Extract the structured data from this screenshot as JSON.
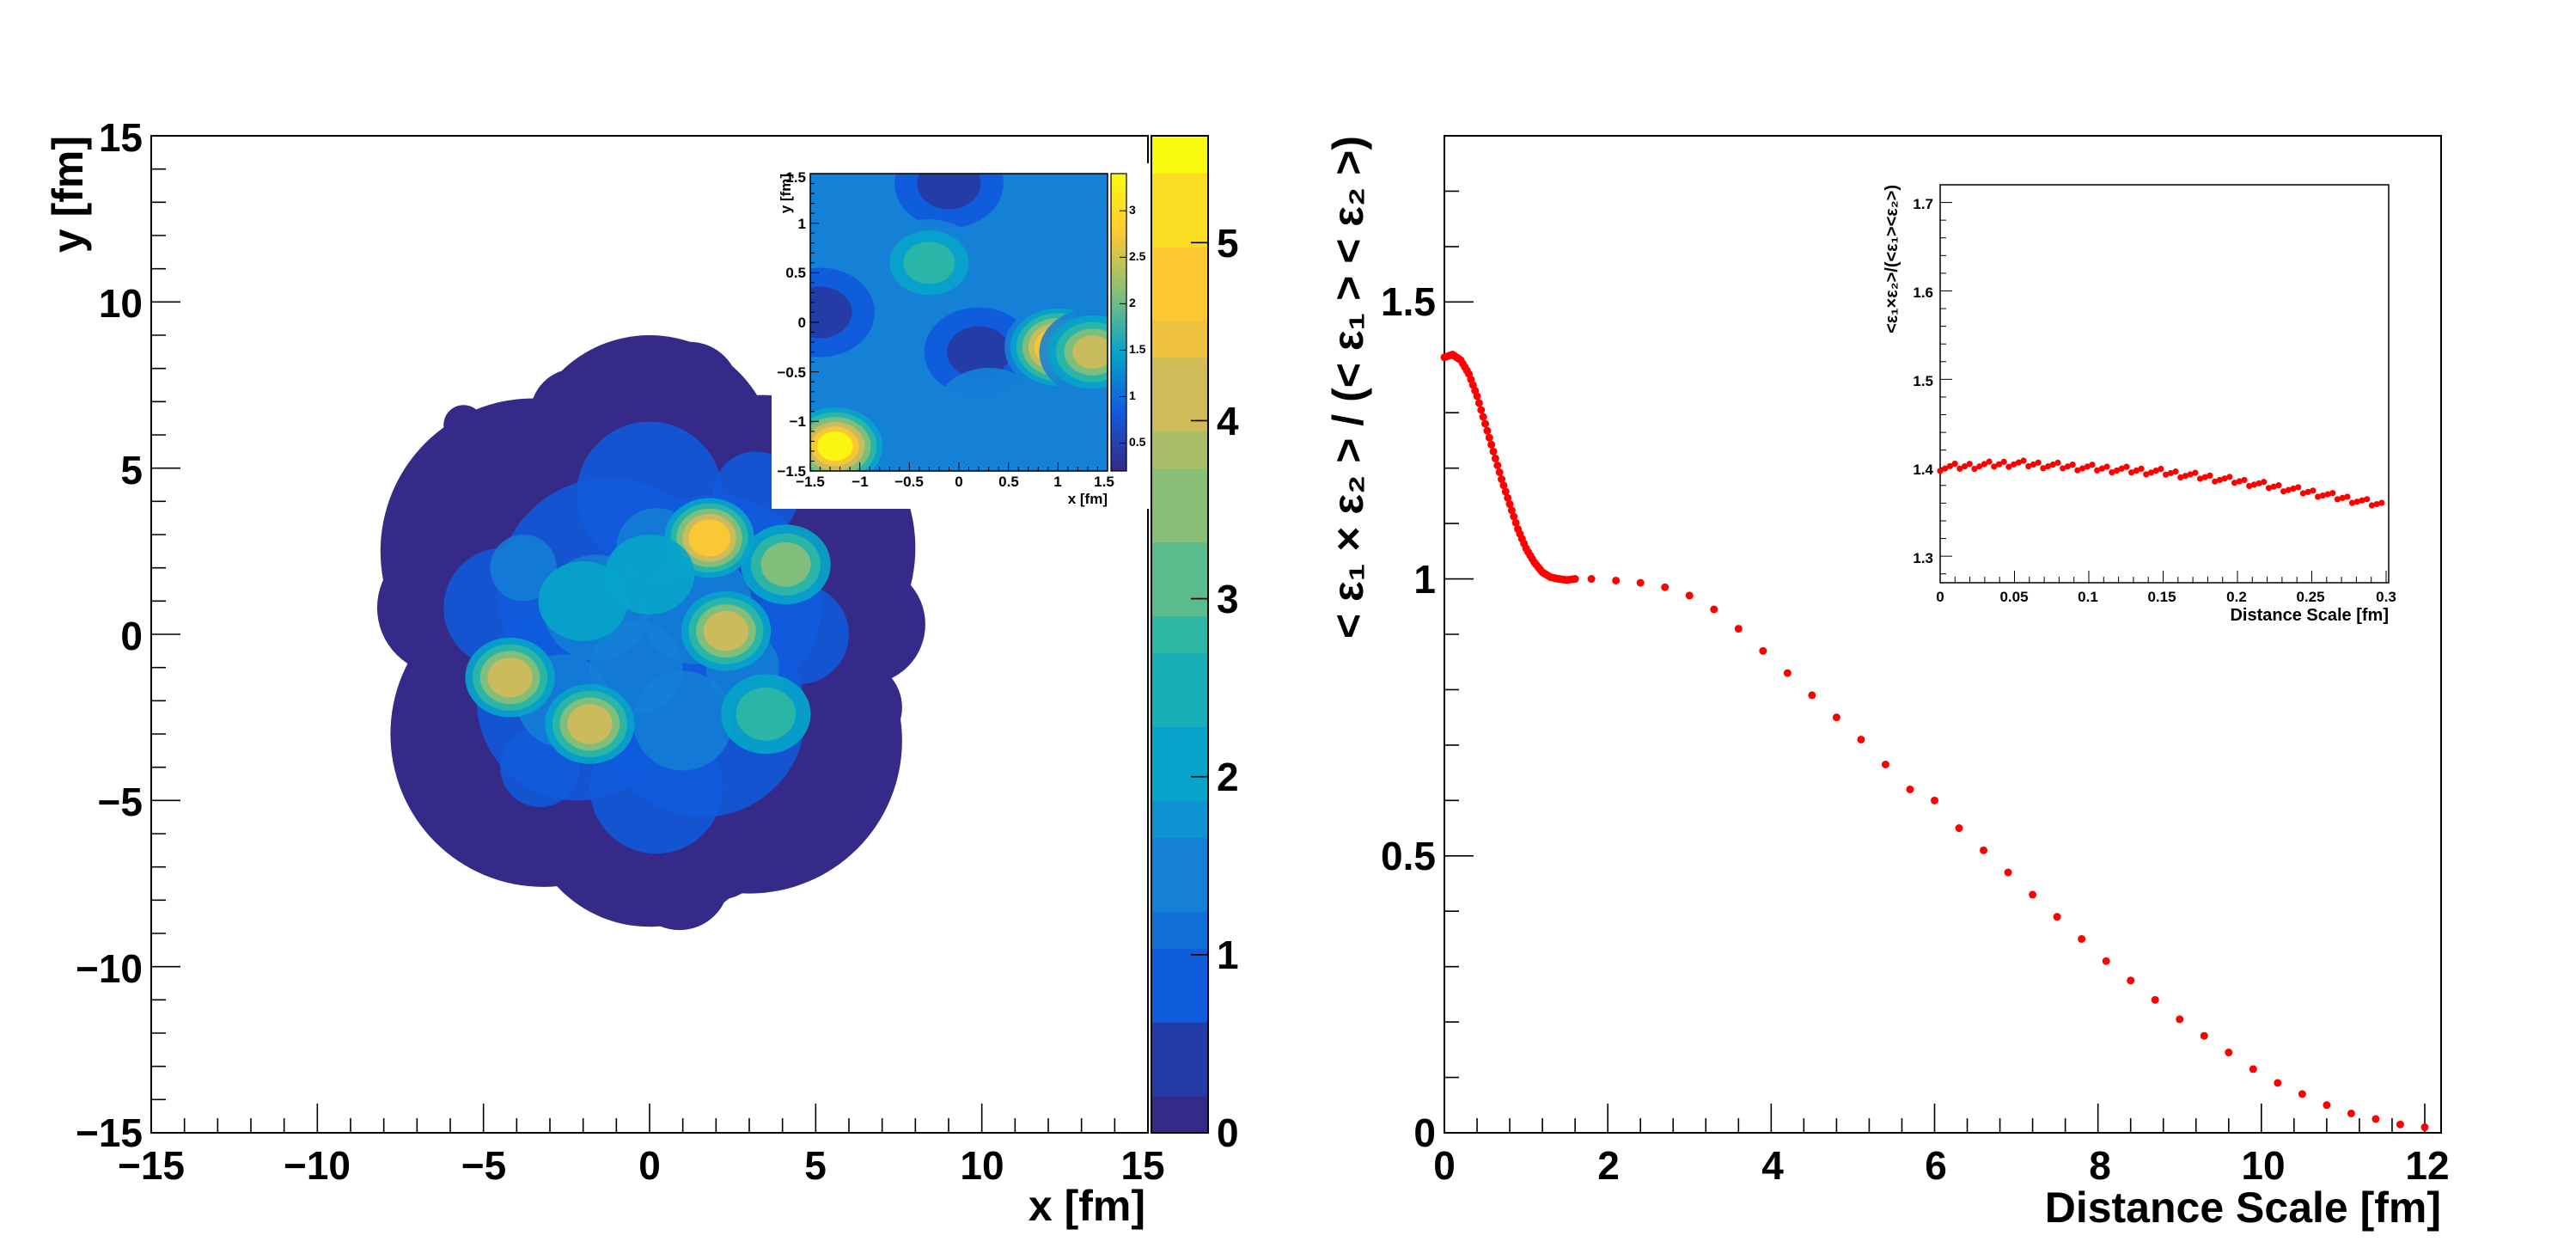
{
  "chart_data": [
    {
      "type": "heatmap",
      "xlabel": "x [fm]",
      "ylabel": "y [fm]",
      "xlim": [
        -15,
        15
      ],
      "ylim": [
        -15,
        15
      ],
      "x_ticks": [
        "−15",
        "−10",
        "−5",
        "0",
        "5",
        "10",
        "15"
      ],
      "y_ticks": [
        "−15",
        "−10",
        "−5",
        "0",
        "5",
        "10",
        "15"
      ],
      "colorbar": {
        "range": [
          0,
          5.6
        ],
        "ticks": [
          "0",
          "1",
          "2",
          "3",
          "4",
          "5"
        ],
        "palette": [
          "#352a87",
          "#0f5cdd",
          "#1481d6",
          "#06a4ca",
          "#2eb7a4",
          "#87bf77",
          "#d1bb59",
          "#fec832",
          "#f9fb0e"
        ]
      },
      "hotspots": [
        {
          "x": 1.8,
          "y": 2.9,
          "value": 4.6
        },
        {
          "x": 4.1,
          "y": 2.1,
          "value": 3.2
        },
        {
          "x": 2.3,
          "y": 0.1,
          "value": 4.4
        },
        {
          "x": -4.2,
          "y": -1.3,
          "value": 4.3
        },
        {
          "x": -1.8,
          "y": -2.7,
          "value": 4.5
        },
        {
          "x": 3.5,
          "y": -2.4,
          "value": 2.6
        },
        {
          "x": -2.0,
          "y": 1.0,
          "value": 1.8
        },
        {
          "x": -4.5,
          "y": 1.3,
          "value": 1.6
        },
        {
          "x": -1.0,
          "y": 3.6,
          "value": 1.5
        },
        {
          "x": 0.6,
          "y": -3.8,
          "value": 1.7
        },
        {
          "x": -3.0,
          "y": -4.2,
          "value": 1.3
        },
        {
          "x": 0.0,
          "y": 1.8,
          "value": 1.9
        },
        {
          "x": 2.6,
          "y": -4.6,
          "value": 1.4
        }
      ],
      "inset": {
        "type": "heatmap",
        "xlabel": "x [fm]",
        "ylabel": "y [fm]",
        "xlim": [
          -1.5,
          1.5
        ],
        "ylim": [
          -1.5,
          1.5
        ],
        "x_ticks": [
          "−1.5",
          "−1",
          "−0.5",
          "0",
          "0.5",
          "1",
          "1.5"
        ],
        "y_ticks": [
          "−1.5",
          "−1",
          "−0.5",
          "0",
          "0.5",
          "1",
          "1.5"
        ],
        "colorbar_range": [
          0.2,
          3.4
        ],
        "colorbar_ticks": [
          "0.5",
          "1",
          "1.5",
          "2",
          "2.5",
          "3"
        ],
        "hotspots": [
          {
            "x": -1.25,
            "y": -1.25,
            "value": 3.3
          },
          {
            "x": 1.0,
            "y": -0.25,
            "value": 3.3
          },
          {
            "x": 1.35,
            "y": -0.3,
            "value": 2.4
          },
          {
            "x": -0.3,
            "y": 0.6,
            "value": 1.7
          },
          {
            "x": 0.3,
            "y": -0.9,
            "value": 1.0
          }
        ],
        "coldspots": [
          {
            "x": -0.1,
            "y": 1.4
          },
          {
            "x": -1.4,
            "y": 0.1
          },
          {
            "x": 0.2,
            "y": -0.3
          }
        ]
      }
    },
    {
      "type": "scatter",
      "xlabel": "Distance Scale [fm]",
      "ylabel": "< ε₁ × ε₂ > / (< ε₁ > < ε₂ >)",
      "xlim": [
        0,
        12.2
      ],
      "ylim": [
        0,
        1.8
      ],
      "x_ticks": [
        "0",
        "2",
        "4",
        "6",
        "8",
        "10",
        "12"
      ],
      "y_ticks": [
        "0",
        "0.5",
        "1",
        "1.5"
      ],
      "marker_color": "#ff0000",
      "dense_segment": {
        "x_start": 0.0,
        "x_end": 1.6,
        "step": 0.025,
        "y_at": [
          [
            0.0,
            1.4
          ],
          [
            0.1,
            1.405
          ],
          [
            0.2,
            1.395
          ],
          [
            0.3,
            1.37
          ],
          [
            0.4,
            1.33
          ],
          [
            0.5,
            1.28
          ],
          [
            0.6,
            1.23
          ],
          [
            0.7,
            1.18
          ],
          [
            0.8,
            1.135
          ],
          [
            0.9,
            1.09
          ],
          [
            1.0,
            1.055
          ],
          [
            1.1,
            1.03
          ],
          [
            1.2,
            1.012
          ],
          [
            1.3,
            1.003
          ],
          [
            1.4,
            1.0
          ],
          [
            1.5,
            0.998
          ],
          [
            1.6,
            1.0
          ]
        ]
      },
      "points": [
        [
          1.8,
          1.0
        ],
        [
          2.1,
          0.997
        ],
        [
          2.4,
          0.993
        ],
        [
          2.7,
          0.985
        ],
        [
          3.0,
          0.97
        ],
        [
          3.3,
          0.945
        ],
        [
          3.6,
          0.91
        ],
        [
          3.9,
          0.87
        ],
        [
          4.2,
          0.83
        ],
        [
          4.5,
          0.79
        ],
        [
          4.8,
          0.75
        ],
        [
          5.1,
          0.71
        ],
        [
          5.4,
          0.665
        ],
        [
          5.7,
          0.62
        ],
        [
          6.0,
          0.6
        ],
        [
          6.3,
          0.55
        ],
        [
          6.6,
          0.51
        ],
        [
          6.9,
          0.47
        ],
        [
          7.2,
          0.43
        ],
        [
          7.5,
          0.39
        ],
        [
          7.8,
          0.35
        ],
        [
          8.1,
          0.31
        ],
        [
          8.4,
          0.275
        ],
        [
          8.7,
          0.24
        ],
        [
          9.0,
          0.205
        ],
        [
          9.3,
          0.175
        ],
        [
          9.6,
          0.145
        ],
        [
          9.9,
          0.115
        ],
        [
          10.2,
          0.09
        ],
        [
          10.5,
          0.07
        ],
        [
          10.8,
          0.05
        ],
        [
          11.1,
          0.035
        ],
        [
          11.4,
          0.025
        ],
        [
          11.7,
          0.015
        ],
        [
          12.0,
          0.01
        ]
      ],
      "inset": {
        "type": "scatter",
        "xlabel": "Distance Scale [fm]",
        "ylabel": "<ε₁×ε₂>/(<ε₁><ε₂>)",
        "xlim": [
          0,
          0.3
        ],
        "ylim": [
          1.27,
          1.72
        ],
        "x_ticks": [
          "0",
          "0.05",
          "0.1",
          "0.15",
          "0.2",
          "0.25",
          "0.3"
        ],
        "y_ticks": [
          "1.3",
          "1.4",
          "1.5",
          "1.6",
          "1.7"
        ],
        "x_start": 0.0,
        "x_end": 0.3,
        "step": 0.0033,
        "y_at": [
          [
            0.0,
            1.4
          ],
          [
            0.05,
            1.405
          ],
          [
            0.1,
            1.4
          ],
          [
            0.15,
            1.395
          ],
          [
            0.2,
            1.385
          ],
          [
            0.25,
            1.372
          ],
          [
            0.3,
            1.357
          ]
        ]
      }
    }
  ]
}
